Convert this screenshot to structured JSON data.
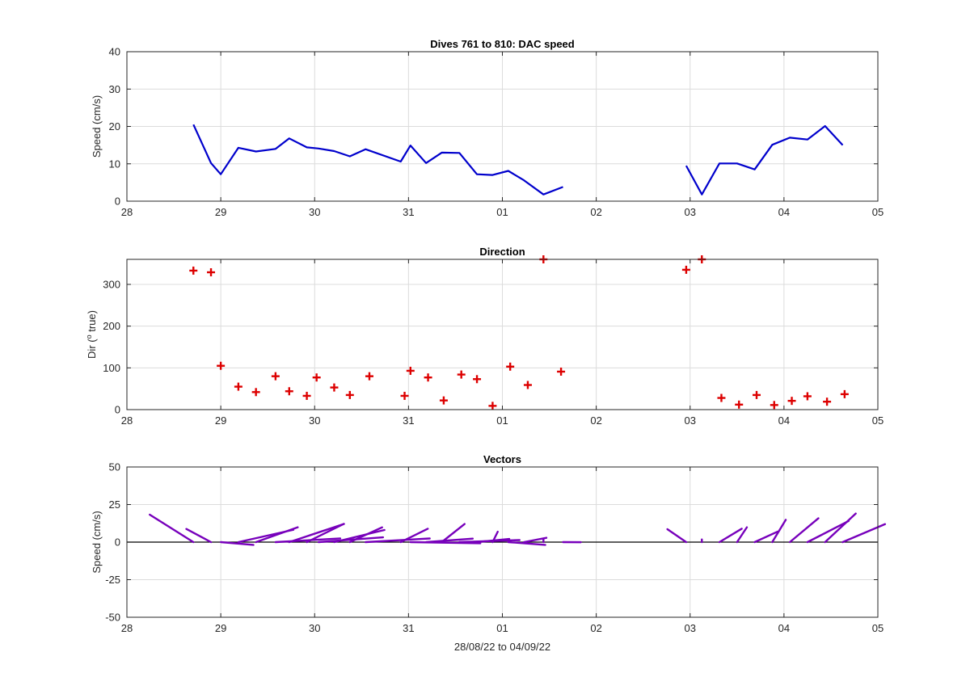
{
  "chart_data": [
    {
      "type": "line",
      "title": "Dives 761 to 810: DAC speed",
      "ylabel": "Speed (cm/s)",
      "xlabel": "",
      "xlim": [
        "2022-08-28",
        "2022-09-05"
      ],
      "ylim": [
        0,
        40
      ],
      "yticks": [
        0,
        10,
        20,
        30,
        40
      ],
      "xtick_labels": [
        "28",
        "29",
        "30",
        "31",
        "01",
        "02",
        "03",
        "04",
        "05"
      ],
      "grid": true,
      "line_color": "#0000cc",
      "segments": [
        {
          "x": [
            "2022-08-28 17:00",
            "2022-08-28 21:30",
            "2022-08-29 00:00",
            "2022-08-29 04:30",
            "2022-08-29 09:00",
            "2022-08-29 14:00",
            "2022-08-29 17:30",
            "2022-08-29 22:00",
            "2022-08-30 01:00",
            "2022-08-30 05:00",
            "2022-08-30 09:00",
            "2022-08-30 13:00",
            "2022-08-30 22:00",
            "2022-08-31 00:30",
            "2022-08-31 04:30",
            "2022-08-31 08:30",
            "2022-08-31 13:00",
            "2022-08-31 17:30",
            "2022-08-31 21:30",
            "2022-09-01 01:30",
            "2022-09-01 05:30",
            "2022-09-01 10:30",
            "2022-09-01 15:30"
          ],
          "y": [
            20.5,
            10.2,
            7.2,
            14.3,
            13.3,
            14.0,
            16.8,
            14.4,
            14.1,
            13.4,
            12.0,
            13.9,
            10.6,
            14.9,
            10.2,
            13.0,
            12.9,
            7.2,
            7.0,
            8.1,
            5.6,
            1.8,
            3.8
          ]
        },
        {
          "x": [
            "2022-09-02 23:00",
            "2022-09-03 03:00",
            "2022-09-03 07:30",
            "2022-09-03 12:00",
            "2022-09-03 16:30",
            "2022-09-03 21:00",
            "2022-09-04 01:30",
            "2022-09-04 06:00",
            "2022-09-04 10:30",
            "2022-09-04 15:00"
          ],
          "y": [
            9.5,
            1.8,
            10.1,
            10.1,
            8.5,
            15.1,
            17.0,
            16.5,
            20.1,
            15.0
          ]
        }
      ]
    },
    {
      "type": "scatter",
      "title": "Direction",
      "ylabel": "Dir (",
      "ylabel_sup": "o",
      "ylabel_rest": " true)",
      "xlabel": "",
      "xlim": [
        "2022-08-28",
        "2022-09-05"
      ],
      "ylim": [
        0,
        360
      ],
      "yticks": [
        0,
        100,
        200,
        300
      ],
      "xtick_labels": [
        "28",
        "29",
        "30",
        "31",
        "01",
        "02",
        "03",
        "04",
        "05"
      ],
      "grid": true,
      "marker": "+",
      "marker_color": "#dd0000",
      "x": [
        "2022-08-28 17:00",
        "2022-08-28 21:30",
        "2022-08-29 00:00",
        "2022-08-29 04:30",
        "2022-08-29 09:00",
        "2022-08-29 14:00",
        "2022-08-29 17:30",
        "2022-08-29 22:00",
        "2022-08-30 00:30",
        "2022-08-30 05:00",
        "2022-08-30 09:00",
        "2022-08-30 14:00",
        "2022-08-30 23:00",
        "2022-08-31 00:30",
        "2022-08-31 05:00",
        "2022-08-31 09:00",
        "2022-08-31 13:30",
        "2022-08-31 17:30",
        "2022-08-31 21:30",
        "2022-09-01 02:00",
        "2022-09-01 06:30",
        "2022-09-01 10:30",
        "2022-09-01 15:00",
        "2022-09-02 23:00",
        "2022-09-03 03:00",
        "2022-09-03 08:00",
        "2022-09-03 12:30",
        "2022-09-03 17:00",
        "2022-09-03 21:30",
        "2022-09-04 02:00",
        "2022-09-04 06:00",
        "2022-09-04 11:00",
        "2022-09-04 15:30"
      ],
      "y": [
        333,
        329,
        105,
        55,
        42,
        80,
        44,
        33,
        77,
        53,
        35,
        80,
        33,
        93,
        77,
        22,
        84,
        73,
        9,
        103,
        59,
        360,
        91,
        335,
        360,
        28,
        12,
        35,
        11,
        21,
        32,
        19,
        37
      ]
    },
    {
      "type": "vector",
      "title": "Vectors",
      "ylabel": "Speed (cm/s)",
      "xlabel": "28/08/22 to 04/09/22",
      "xlim": [
        "2022-08-28",
        "2022-09-05"
      ],
      "ylim": [
        -50,
        50
      ],
      "yticks": [
        -50,
        -25,
        0,
        25,
        50
      ],
      "xtick_labels": [
        "28",
        "29",
        "30",
        "31",
        "01",
        "02",
        "03",
        "04",
        "05"
      ],
      "grid": true,
      "line_color": "#7700bb",
      "x": [
        "2022-08-28 17:00",
        "2022-08-28 21:30",
        "2022-08-29 00:00",
        "2022-08-29 04:30",
        "2022-08-29 09:00",
        "2022-08-29 14:00",
        "2022-08-29 17:30",
        "2022-08-29 22:00",
        "2022-08-30 01:00",
        "2022-08-30 05:00",
        "2022-08-30 09:00",
        "2022-08-30 13:00",
        "2022-08-30 22:00",
        "2022-08-31 00:30",
        "2022-08-31 04:30",
        "2022-08-31 08:30",
        "2022-08-31 13:00",
        "2022-08-31 17:30",
        "2022-08-31 21:30",
        "2022-09-01 01:30",
        "2022-09-01 05:30",
        "2022-09-01 10:30",
        "2022-09-01 15:30",
        "2022-09-02 23:00",
        "2022-09-03 03:00",
        "2022-09-03 07:30",
        "2022-09-03 12:00",
        "2022-09-03 16:30",
        "2022-09-03 21:00",
        "2022-09-04 01:30",
        "2022-09-04 06:00",
        "2022-09-04 10:30",
        "2022-09-04 15:00"
      ],
      "speed": [
        20.5,
        10.2,
        7.2,
        14.3,
        13.3,
        14.0,
        16.8,
        14.4,
        14.1,
        13.4,
        12.0,
        13.9,
        10.6,
        14.9,
        10.2,
        13.0,
        12.9,
        7.2,
        7.0,
        8.1,
        5.6,
        1.8,
        3.8,
        9.5,
        1.8,
        10.1,
        10.1,
        8.5,
        15.1,
        17.0,
        16.5,
        20.1,
        15.0
      ],
      "direction": [
        333,
        329,
        105,
        55,
        42,
        80,
        44,
        33,
        77,
        53,
        35,
        80,
        33,
        93,
        77,
        22,
        84,
        73,
        9,
        103,
        59,
        360,
        91,
        335,
        360,
        28,
        12,
        35,
        11,
        21,
        32,
        19,
        37
      ]
    }
  ]
}
